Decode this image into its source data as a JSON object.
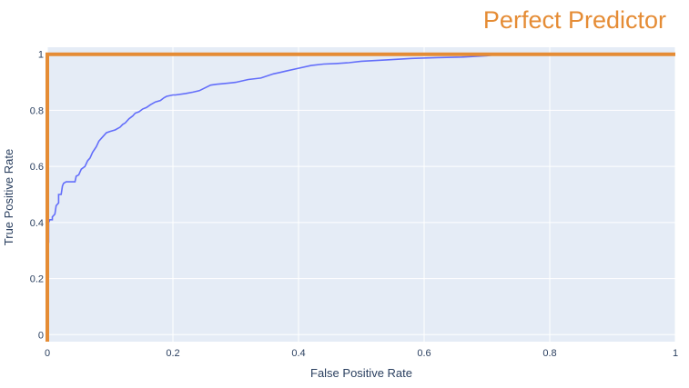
{
  "chart_data": {
    "type": "line",
    "title": "Perfect Predictor",
    "xlabel": "False Positive Rate",
    "ylabel": "True Positive Rate",
    "xlim": [
      0,
      1
    ],
    "ylim": [
      -0.025,
      1.025
    ],
    "x_ticks": [
      0,
      0.2,
      0.4,
      0.6,
      0.8,
      1
    ],
    "x_tick_labels": [
      "0",
      "0.2",
      "0.4",
      "0.6",
      "0.8",
      "1"
    ],
    "y_ticks": [
      0,
      0.2,
      0.4,
      0.6,
      0.8,
      1
    ],
    "y_tick_labels": [
      "0",
      "0.2",
      "0.4",
      "0.6",
      "0.8",
      "1"
    ],
    "grid": true,
    "series": [
      {
        "color": "#636efa",
        "x": [
          0,
          0,
          0.002,
          0.002,
          0.004,
          0.008,
          0.008,
          0.012,
          0.014,
          0.018,
          0.018,
          0.022,
          0.024,
          0.026,
          0.03,
          0.034,
          0.044,
          0.046,
          0.05,
          0.054,
          0.06,
          0.064,
          0.068,
          0.072,
          0.078,
          0.082,
          0.086,
          0.09,
          0.094,
          0.1,
          0.108,
          0.116,
          0.12,
          0.124,
          0.13,
          0.136,
          0.14,
          0.146,
          0.152,
          0.158,
          0.164,
          0.172,
          0.18,
          0.186,
          0.19,
          0.2,
          0.204,
          0.22,
          0.232,
          0.242,
          0.26,
          0.27,
          0.28,
          0.3,
          0.32,
          0.34,
          0.36,
          0.37,
          0.38,
          0.4,
          0.42,
          0.44,
          0.46,
          0.48,
          0.5,
          0.54,
          0.58,
          0.62,
          0.66,
          0.7,
          0.72,
          0.74,
          0.8,
          0.9,
          1
        ],
        "y": [
          0,
          0.33,
          0.33,
          0.4,
          0.41,
          0.41,
          0.42,
          0.43,
          0.46,
          0.47,
          0.5,
          0.5,
          0.53,
          0.54,
          0.545,
          0.545,
          0.545,
          0.565,
          0.57,
          0.59,
          0.6,
          0.62,
          0.63,
          0.65,
          0.67,
          0.69,
          0.7,
          0.71,
          0.72,
          0.725,
          0.73,
          0.74,
          0.75,
          0.755,
          0.77,
          0.78,
          0.79,
          0.795,
          0.805,
          0.81,
          0.82,
          0.83,
          0.835,
          0.845,
          0.85,
          0.855,
          0.855,
          0.86,
          0.865,
          0.87,
          0.89,
          0.893,
          0.895,
          0.9,
          0.91,
          0.915,
          0.93,
          0.935,
          0.94,
          0.95,
          0.96,
          0.965,
          0.967,
          0.97,
          0.975,
          0.98,
          0.985,
          0.988,
          0.99,
          0.995,
          1,
          1,
          1,
          1,
          1
        ]
      },
      {
        "color": "#e58c35",
        "x": [
          0,
          0,
          1
        ],
        "y": [
          -0.025,
          1,
          1
        ]
      }
    ]
  }
}
